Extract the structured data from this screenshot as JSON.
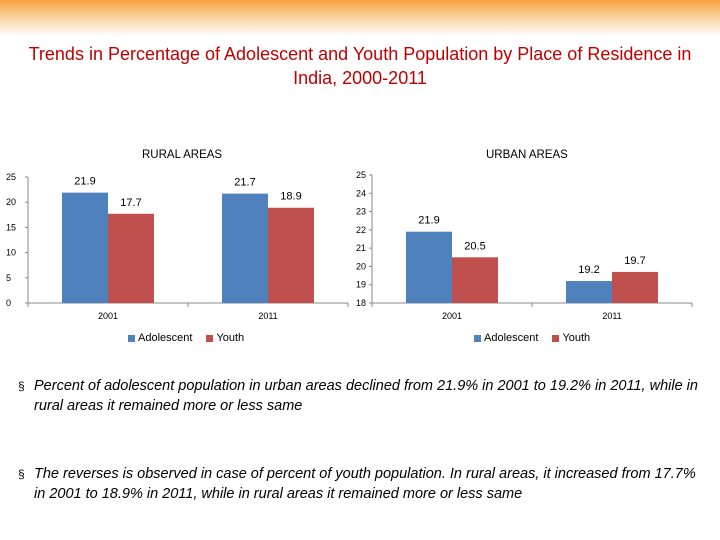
{
  "title": "Trends in Percentage of Adolescent and Youth Population by Place of Residence in India, 2000-2011",
  "colors": {
    "adolescent": "#4f81bd",
    "youth": "#c0504d",
    "title": "#c00000"
  },
  "bullet_marker": "§",
  "chart_data": [
    {
      "type": "bar",
      "title": "RURAL AREAS",
      "categories": [
        "2001",
        "2011"
      ],
      "series": [
        {
          "name": "Adolescent",
          "values": [
            21.9,
            21.7
          ],
          "labels": [
            "21.9",
            "21.7"
          ]
        },
        {
          "name": "Youth",
          "values": [
            17.7,
            18.9
          ],
          "labels": [
            "17.7",
            "18.9"
          ]
        }
      ],
      "ylim": [
        0,
        25
      ],
      "yticks": [
        "0",
        "5",
        "10",
        "15",
        "20",
        "25"
      ],
      "xlabel": "",
      "ylabel": "",
      "legend": "bottom"
    },
    {
      "type": "bar",
      "title": "URBAN AREAS",
      "categories": [
        "2001",
        "2011"
      ],
      "series": [
        {
          "name": "Adolescent",
          "values": [
            21.9,
            19.2
          ],
          "labels": [
            "21.9",
            "19.2"
          ]
        },
        {
          "name": "Youth",
          "values": [
            20.5,
            19.7
          ],
          "labels": [
            "20.5",
            "19.7"
          ]
        }
      ],
      "ylim": [
        18,
        25
      ],
      "yticks": [
        "18",
        "19",
        "20",
        "21",
        "22",
        "23",
        "24",
        "25"
      ],
      "xlabel": "",
      "ylabel": "",
      "legend": "bottom"
    }
  ],
  "bullets": [
    "Percent of adolescent population in urban areas declined from 21.9% in 2001 to 19.2% in 2011, while in rural areas it remained more or less same",
    "The reverses is observed in case of percent of youth population. In rural areas, it increased from 17.7% in 2001 to 18.9% in 2011, while in rural areas it remained more or less same"
  ]
}
